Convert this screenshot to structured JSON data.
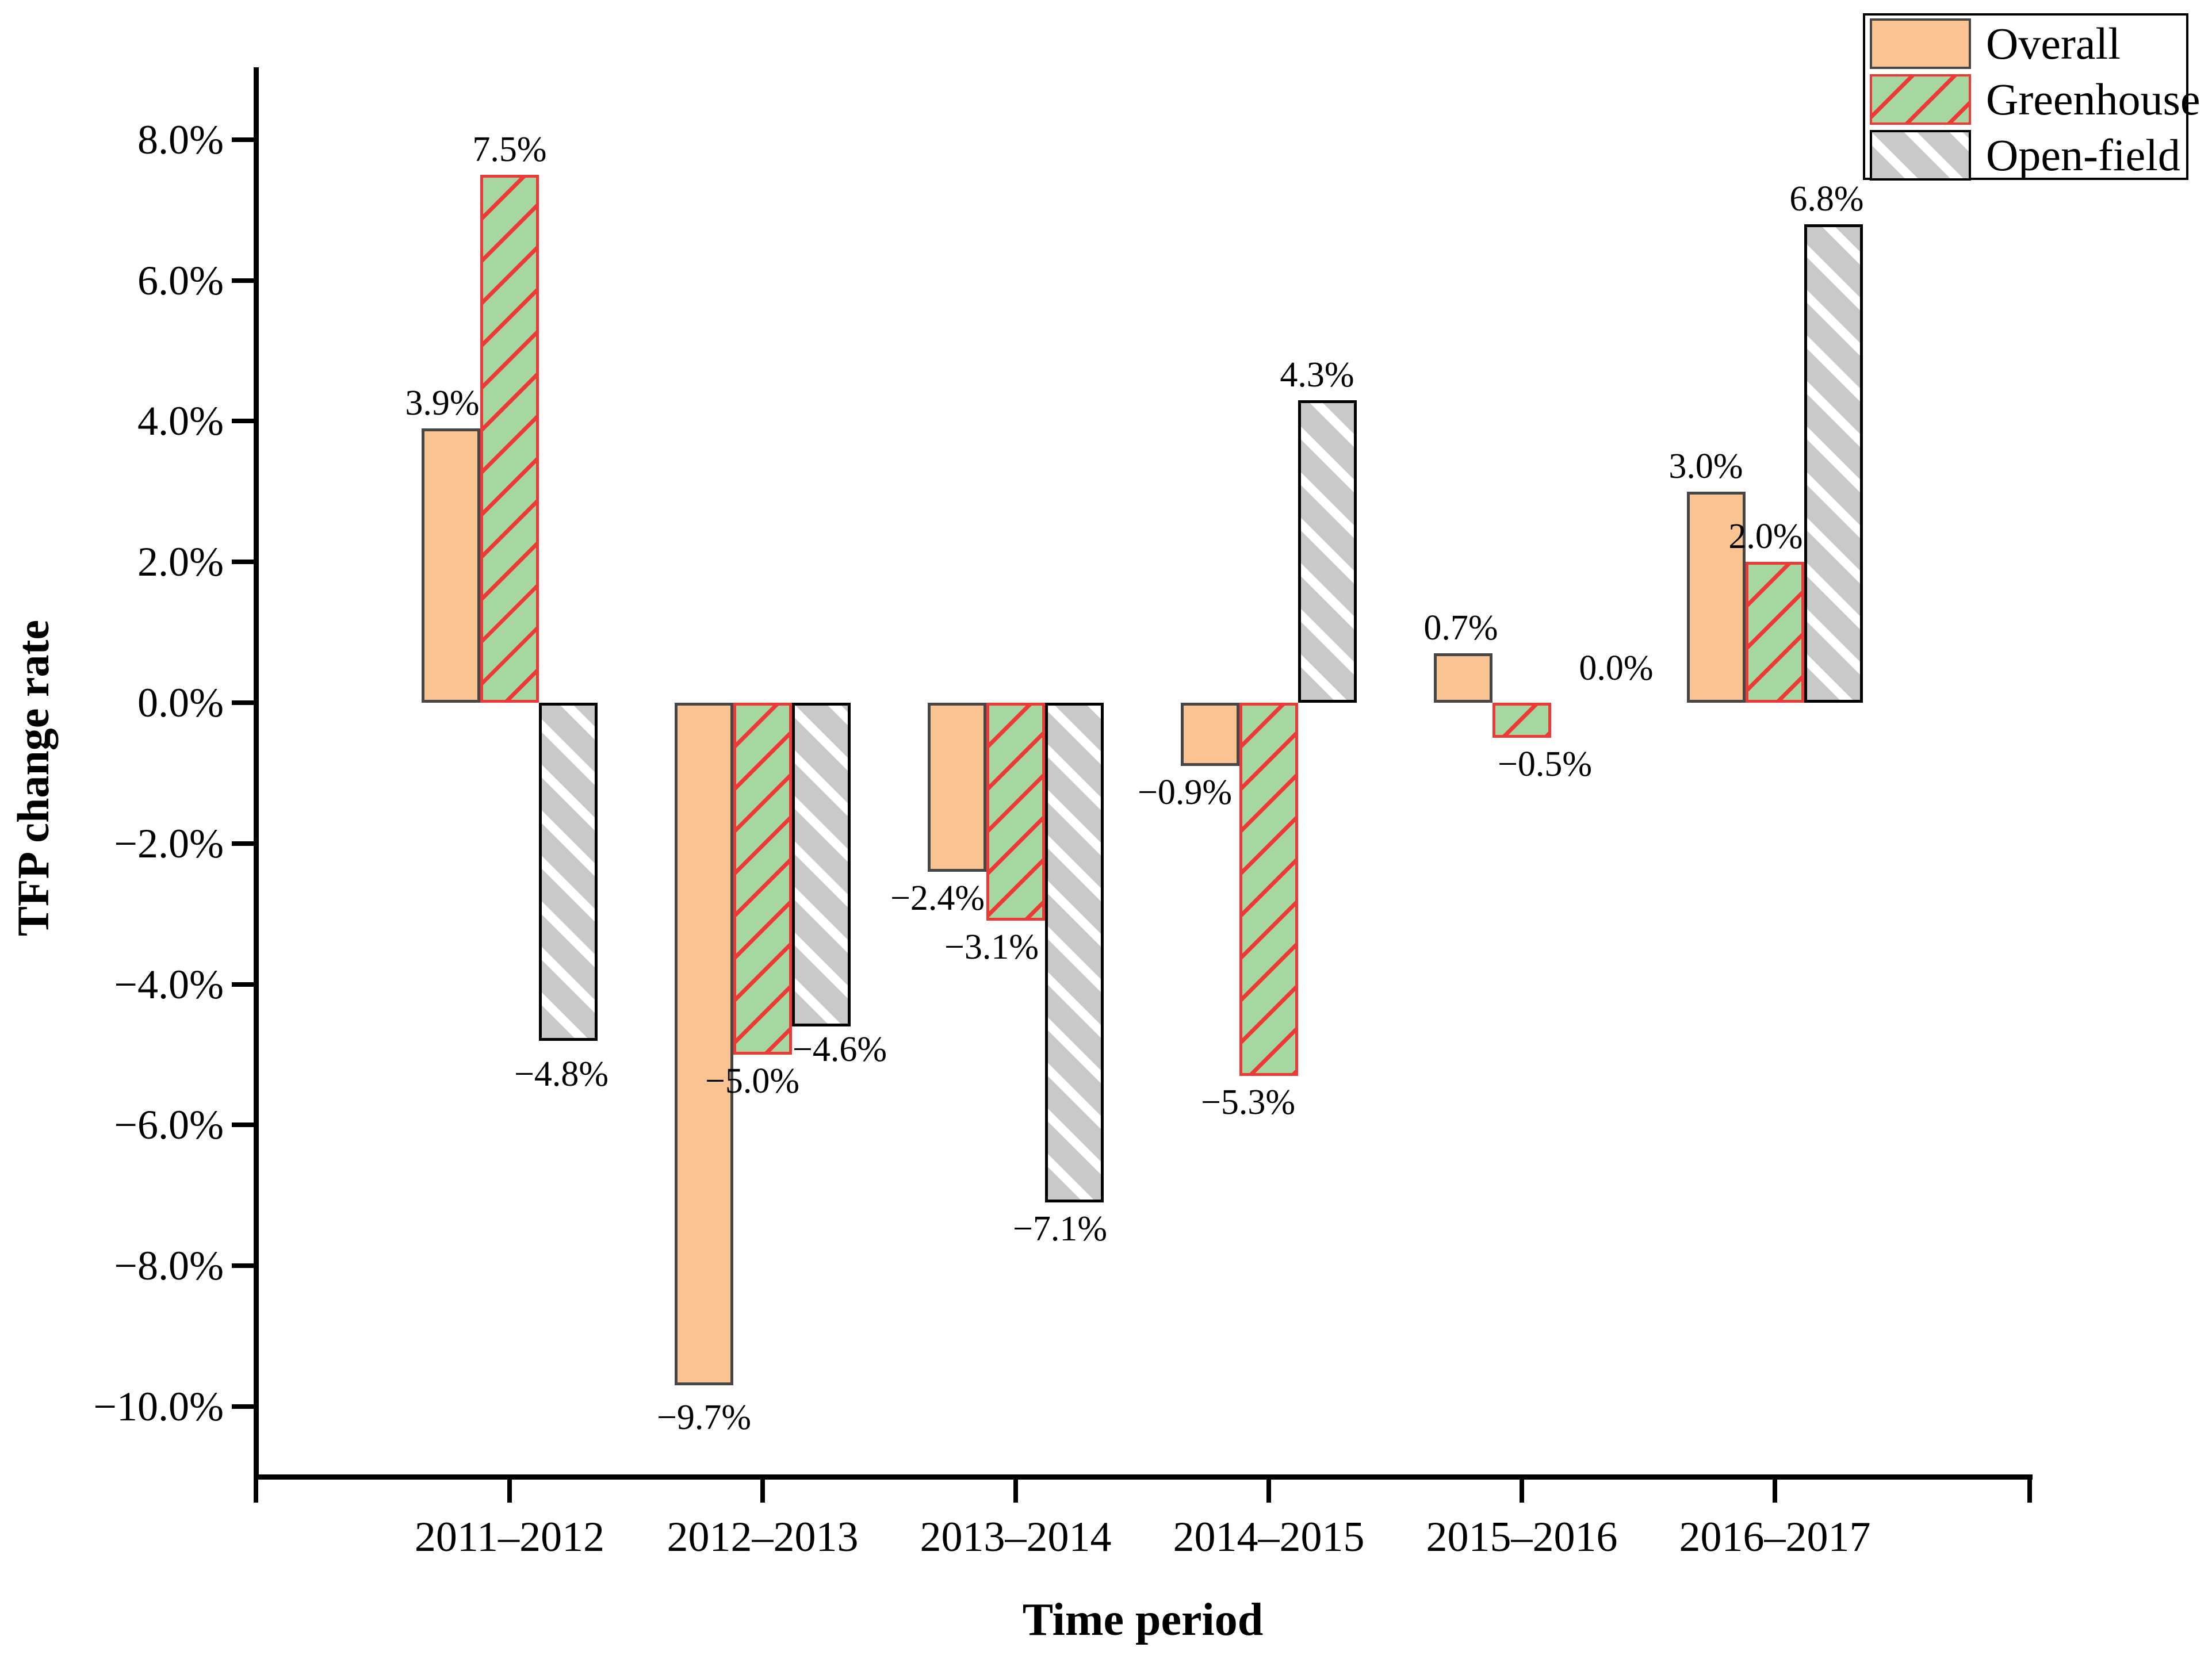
{
  "chart_data": {
    "type": "bar",
    "title": "",
    "xlabel": "Time period",
    "ylabel": "TFP change rate",
    "categories": [
      "2011–2012",
      "2012–2013",
      "2013–2014",
      "2014–2015",
      "2015–2016",
      "2016–2017"
    ],
    "series": [
      {
        "name": "Overall",
        "key": "overall",
        "values": [
          3.9,
          -9.7,
          -2.4,
          -0.9,
          0.7,
          3.0
        ],
        "labels": [
          "3.9%",
          "−9.7%",
          "−2.4%",
          "−0.9%",
          "0.7%",
          "3.0%"
        ]
      },
      {
        "name": "Greenhouse",
        "key": "greenhouse",
        "values": [
          7.5,
          -5.0,
          -3.1,
          -5.3,
          -0.5,
          2.0
        ],
        "labels": [
          "7.5%",
          "−5.0%",
          "−3.1%",
          "−5.3%",
          "−0.5%",
          "2.0%"
        ]
      },
      {
        "name": "Open-field",
        "key": "openfield",
        "values": [
          -4.8,
          -4.6,
          -7.1,
          4.3,
          0.0,
          6.8
        ],
        "labels": [
          "−4.8%",
          "−4.6%",
          "−7.1%",
          "4.3%",
          "0.0%",
          "6.8%"
        ]
      }
    ],
    "yticks": {
      "values": [
        8,
        6,
        4,
        2,
        0,
        -2,
        -4,
        -6,
        -8,
        -10
      ],
      "labels": [
        "8.0%",
        "6.0%",
        "4.0%",
        "2.0%",
        "0.0%",
        "−2.0%",
        "−4.0%",
        "−6.0%",
        "−8.0%",
        "−10.0%"
      ]
    },
    "ylim": [
      -11.0,
      9.0
    ],
    "grid": false,
    "legend_position": "top-right",
    "colors": {
      "overall_fill": "#fac392",
      "overall_border": "#474747",
      "greenhouse_fill": "#a7d7a0",
      "greenhouse_hatch": "#ee3a36",
      "openfield_fill": "#c9c9c9",
      "openfield_hatch": "#ffffff",
      "openfield_border": "#000000",
      "text": "#000000",
      "background": "#ffffff"
    },
    "label_adjust": {
      "overall-0": {
        "dx": -15,
        "dy": 0
      },
      "greenhouse-0": {
        "dx": 0,
        "dy": 0
      },
      "openfield-0": {
        "dx": -12,
        "dy": 12
      },
      "overall-1": {
        "dx": 0,
        "dy": 10
      },
      "greenhouse-1": {
        "dx": -18,
        "dy": 0
      },
      "openfield-1": {
        "dx": 32,
        "dy": -6
      },
      "overall-2": {
        "dx": -34,
        "dy": 0
      },
      "greenhouse-2": {
        "dx": -42,
        "dy": 0
      },
      "openfield-2": {
        "dx": -25,
        "dy": 0
      },
      "overall-3": {
        "dx": -44,
        "dy": 0
      },
      "greenhouse-3": {
        "dx": -36,
        "dy": 0
      },
      "openfield-3": {
        "dx": -18,
        "dy": 0
      },
      "overall-4": {
        "dx": -4,
        "dy": 0
      },
      "greenhouse-4": {
        "dx": 40,
        "dy": 0
      },
      "openfield-4": {
        "dx": 62,
        "dy": 0
      },
      "overall-5": {
        "dx": -18,
        "dy": 0
      },
      "greenhouse-5": {
        "dx": -16,
        "dy": 0
      },
      "openfield-5": {
        "dx": -12,
        "dy": 0
      }
    }
  }
}
